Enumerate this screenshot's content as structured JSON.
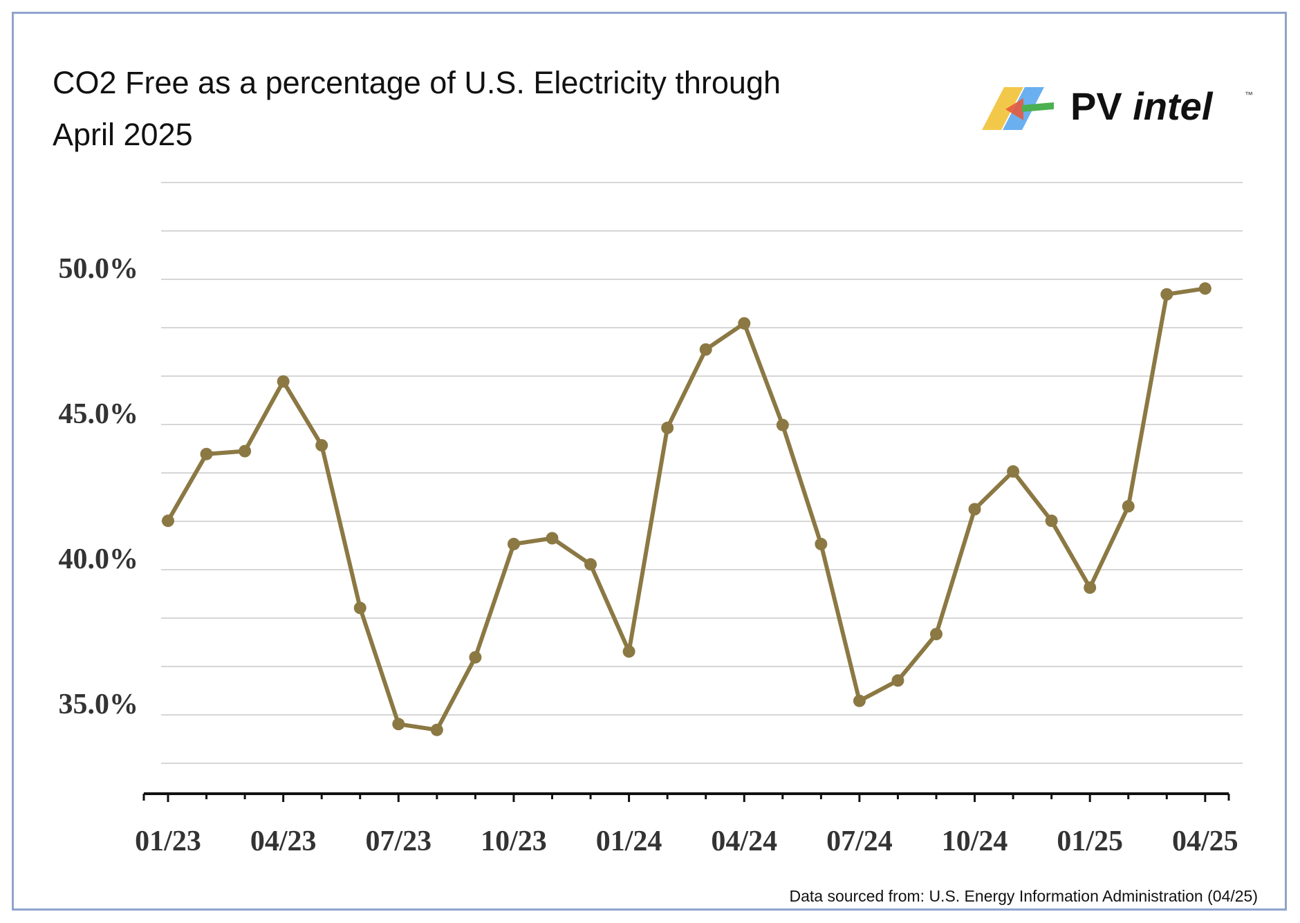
{
  "title_line1": "CO2 Free as a percentage of U.S. Electricity through",
  "title_line2": "April 2025",
  "brand": {
    "name_part1": "PV",
    "name_part2": "intel",
    "tm": "™"
  },
  "source_note": "Data sourced from: U.S. Energy Information Administration (04/25)",
  "colors": {
    "line": "#8b7843",
    "grid": "#c8c8c8",
    "axis": "#111111",
    "frame": "#8fa3cc"
  },
  "chart_data": {
    "type": "line",
    "title": "CO2 Free as a percentage of U.S. Electricity through April 2025",
    "xlabel": "",
    "ylabel": "",
    "x_tick_labels": [
      "01/23",
      "04/23",
      "07/23",
      "10/23",
      "01/24",
      "04/24",
      "07/24",
      "10/24",
      "01/25",
      "04/25"
    ],
    "y_tick_labels": [
      "50.0%",
      "45.0%",
      "40.0%",
      "35.0%"
    ],
    "y_tick_values": [
      50.0,
      45.0,
      40.0,
      35.0
    ],
    "ylim": [
      32.95,
      52.95
    ],
    "grid": true,
    "series": [
      {
        "x": [
          "01/23",
          "02/23",
          "03/23",
          "04/23",
          "05/23",
          "06/23",
          "07/23",
          "08/23",
          "09/23",
          "10/23",
          "11/23",
          "12/23",
          "01/24",
          "02/24",
          "03/24",
          "04/24",
          "05/24",
          "06/24",
          "07/24",
          "08/24",
          "09/24",
          "10/24",
          "11/24",
          "12/24",
          "01/25",
          "02/25",
          "03/25",
          "04/25"
        ],
        "values": [
          41.3,
          43.6,
          43.7,
          46.1,
          43.9,
          38.3,
          34.3,
          34.1,
          36.6,
          40.5,
          40.7,
          39.8,
          36.8,
          44.5,
          47.2,
          48.1,
          44.6,
          40.5,
          35.1,
          35.8,
          37.4,
          41.7,
          43.0,
          41.3,
          39.0,
          41.8,
          49.1,
          49.3
        ]
      }
    ]
  }
}
